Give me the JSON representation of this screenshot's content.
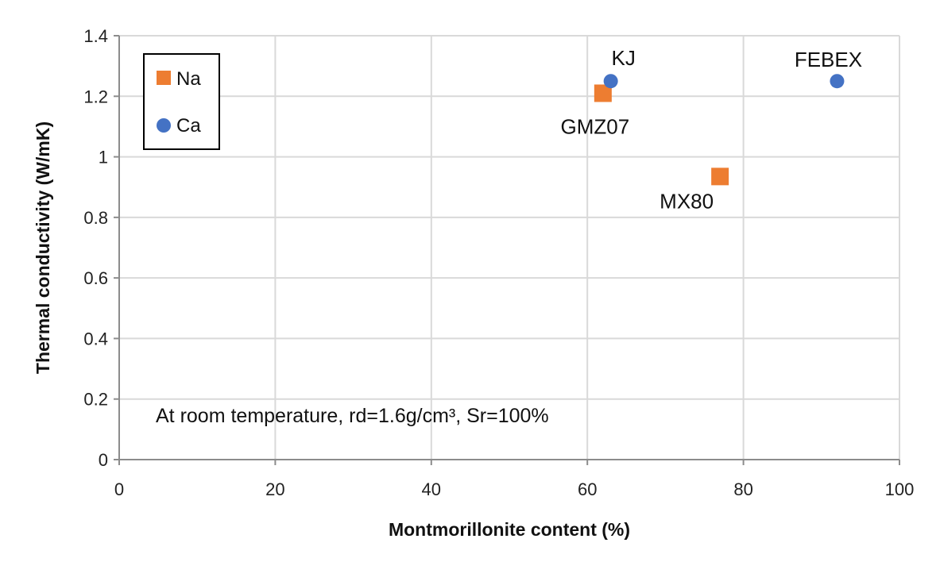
{
  "chart_data": {
    "type": "scatter",
    "xlabel": "Montmorillonite content (%)",
    "ylabel": "Thermal conductivity (W/mK)",
    "xlim": [
      0,
      100
    ],
    "ylim": [
      0,
      1.4
    ],
    "xticks": [
      "0",
      "20",
      "40",
      "60",
      "80",
      "100"
    ],
    "yticks": [
      "0",
      "0.2",
      "0.4",
      "0.6",
      "0.8",
      "1",
      "1.2",
      "1.4"
    ],
    "grid": true,
    "legend_position": "top-left",
    "annotation": "At room temperature, rd=1.6g/cm³, Sr=100%",
    "series": [
      {
        "name": "Na",
        "marker": "square",
        "color": "#ed7d31",
        "points": [
          {
            "x": 62,
            "y": 1.21,
            "label": "GMZ07"
          },
          {
            "x": 77,
            "y": 0.935,
            "label": "MX80"
          }
        ]
      },
      {
        "name": "Ca",
        "marker": "circle",
        "color": "#4472c4",
        "points": [
          {
            "x": 63,
            "y": 1.25,
            "label": "KJ"
          },
          {
            "x": 92,
            "y": 1.25,
            "label": "FEBEX"
          }
        ]
      }
    ]
  }
}
